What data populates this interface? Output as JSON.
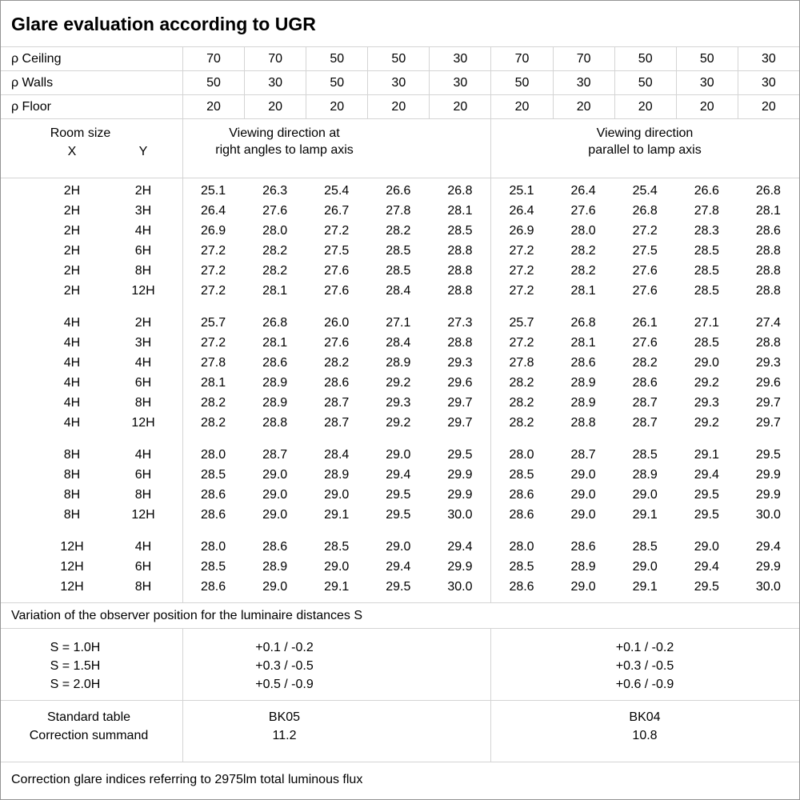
{
  "title": "Glare evaluation according to UGR",
  "grid_color": "#d4d4d4",
  "border_color": "#949494",
  "reflectance_rows": [
    {
      "label": "ρ Ceiling",
      "values": [
        "70",
        "70",
        "50",
        "50",
        "30",
        "70",
        "70",
        "50",
        "50",
        "30"
      ]
    },
    {
      "label": "ρ Walls",
      "values": [
        "50",
        "30",
        "50",
        "30",
        "30",
        "50",
        "30",
        "50",
        "30",
        "30"
      ]
    },
    {
      "label": "ρ Floor",
      "values": [
        "20",
        "20",
        "20",
        "20",
        "20",
        "20",
        "20",
        "20",
        "20",
        "20"
      ]
    }
  ],
  "header": {
    "room_size": "Room size",
    "x": "X",
    "y": "Y",
    "perpendicular": {
      "line1": "Viewing direction at",
      "line2": "right angles to lamp axis"
    },
    "parallel": {
      "line1": "Viewing direction",
      "line2": "parallel to lamp axis"
    }
  },
  "ugr_table": {
    "groups": [
      {
        "rows": [
          {
            "x": "2H",
            "y": "2H",
            "perpendicular": [
              "25.1",
              "26.3",
              "25.4",
              "26.6",
              "26.8"
            ],
            "parallel": [
              "25.1",
              "26.4",
              "25.4",
              "26.6",
              "26.8"
            ]
          },
          {
            "x": "2H",
            "y": "3H",
            "perpendicular": [
              "26.4",
              "27.6",
              "26.7",
              "27.8",
              "28.1"
            ],
            "parallel": [
              "26.4",
              "27.6",
              "26.8",
              "27.8",
              "28.1"
            ]
          },
          {
            "x": "2H",
            "y": "4H",
            "perpendicular": [
              "26.9",
              "28.0",
              "27.2",
              "28.2",
              "28.5"
            ],
            "parallel": [
              "26.9",
              "28.0",
              "27.2",
              "28.3",
              "28.6"
            ]
          },
          {
            "x": "2H",
            "y": "6H",
            "perpendicular": [
              "27.2",
              "28.2",
              "27.5",
              "28.5",
              "28.8"
            ],
            "parallel": [
              "27.2",
              "28.2",
              "27.5",
              "28.5",
              "28.8"
            ]
          },
          {
            "x": "2H",
            "y": "8H",
            "perpendicular": [
              "27.2",
              "28.2",
              "27.6",
              "28.5",
              "28.8"
            ],
            "parallel": [
              "27.2",
              "28.2",
              "27.6",
              "28.5",
              "28.8"
            ]
          },
          {
            "x": "2H",
            "y": "12H",
            "perpendicular": [
              "27.2",
              "28.1",
              "27.6",
              "28.4",
              "28.8"
            ],
            "parallel": [
              "27.2",
              "28.1",
              "27.6",
              "28.5",
              "28.8"
            ]
          }
        ]
      },
      {
        "rows": [
          {
            "x": "4H",
            "y": "2H",
            "perpendicular": [
              "25.7",
              "26.8",
              "26.0",
              "27.1",
              "27.3"
            ],
            "parallel": [
              "25.7",
              "26.8",
              "26.1",
              "27.1",
              "27.4"
            ]
          },
          {
            "x": "4H",
            "y": "3H",
            "perpendicular": [
              "27.2",
              "28.1",
              "27.6",
              "28.4",
              "28.8"
            ],
            "parallel": [
              "27.2",
              "28.1",
              "27.6",
              "28.5",
              "28.8"
            ]
          },
          {
            "x": "4H",
            "y": "4H",
            "perpendicular": [
              "27.8",
              "28.6",
              "28.2",
              "28.9",
              "29.3"
            ],
            "parallel": [
              "27.8",
              "28.6",
              "28.2",
              "29.0",
              "29.3"
            ]
          },
          {
            "x": "4H",
            "y": "6H",
            "perpendicular": [
              "28.1",
              "28.9",
              "28.6",
              "29.2",
              "29.6"
            ],
            "parallel": [
              "28.2",
              "28.9",
              "28.6",
              "29.2",
              "29.6"
            ]
          },
          {
            "x": "4H",
            "y": "8H",
            "perpendicular": [
              "28.2",
              "28.9",
              "28.7",
              "29.3",
              "29.7"
            ],
            "parallel": [
              "28.2",
              "28.9",
              "28.7",
              "29.3",
              "29.7"
            ]
          },
          {
            "x": "4H",
            "y": "12H",
            "perpendicular": [
              "28.2",
              "28.8",
              "28.7",
              "29.2",
              "29.7"
            ],
            "parallel": [
              "28.2",
              "28.8",
              "28.7",
              "29.2",
              "29.7"
            ]
          }
        ]
      },
      {
        "rows": [
          {
            "x": "8H",
            "y": "4H",
            "perpendicular": [
              "28.0",
              "28.7",
              "28.4",
              "29.0",
              "29.5"
            ],
            "parallel": [
              "28.0",
              "28.7",
              "28.5",
              "29.1",
              "29.5"
            ]
          },
          {
            "x": "8H",
            "y": "6H",
            "perpendicular": [
              "28.5",
              "29.0",
              "28.9",
              "29.4",
              "29.9"
            ],
            "parallel": [
              "28.5",
              "29.0",
              "28.9",
              "29.4",
              "29.9"
            ]
          },
          {
            "x": "8H",
            "y": "8H",
            "perpendicular": [
              "28.6",
              "29.0",
              "29.0",
              "29.5",
              "29.9"
            ],
            "parallel": [
              "28.6",
              "29.0",
              "29.0",
              "29.5",
              "29.9"
            ]
          },
          {
            "x": "8H",
            "y": "12H",
            "perpendicular": [
              "28.6",
              "29.0",
              "29.1",
              "29.5",
              "30.0"
            ],
            "parallel": [
              "28.6",
              "29.0",
              "29.1",
              "29.5",
              "30.0"
            ]
          }
        ]
      },
      {
        "rows": [
          {
            "x": "12H",
            "y": "4H",
            "perpendicular": [
              "28.0",
              "28.6",
              "28.5",
              "29.0",
              "29.4"
            ],
            "parallel": [
              "28.0",
              "28.6",
              "28.5",
              "29.0",
              "29.4"
            ]
          },
          {
            "x": "12H",
            "y": "6H",
            "perpendicular": [
              "28.5",
              "28.9",
              "29.0",
              "29.4",
              "29.9"
            ],
            "parallel": [
              "28.5",
              "28.9",
              "29.0",
              "29.4",
              "29.9"
            ]
          },
          {
            "x": "12H",
            "y": "8H",
            "perpendicular": [
              "28.6",
              "29.0",
              "29.1",
              "29.5",
              "30.0"
            ],
            "parallel": [
              "28.6",
              "29.0",
              "29.1",
              "29.5",
              "30.0"
            ]
          }
        ]
      }
    ]
  },
  "variation_note": "Variation of the observer position for the luminaire distances S",
  "spacing_variation": {
    "rows": [
      {
        "label": "S = 1.0H",
        "perpendicular": "+0.1 / -0.2",
        "parallel": "+0.1 / -0.2"
      },
      {
        "label": "S = 1.5H",
        "perpendicular": "+0.3 / -0.5",
        "parallel": "+0.3 / -0.5"
      },
      {
        "label": "S = 2.0H",
        "perpendicular": "+0.5 / -0.9",
        "parallel": "+0.6 / -0.9"
      }
    ]
  },
  "standard_table": {
    "labels": [
      "Standard table",
      "Correction summand"
    ],
    "perpendicular": {
      "standard_table": "BK05",
      "correction_summand": "11.2"
    },
    "parallel": {
      "standard_table": "BK04",
      "correction_summand": "10.8"
    }
  },
  "footer_note": "Correction glare indices referring to 2975lm total luminous flux"
}
